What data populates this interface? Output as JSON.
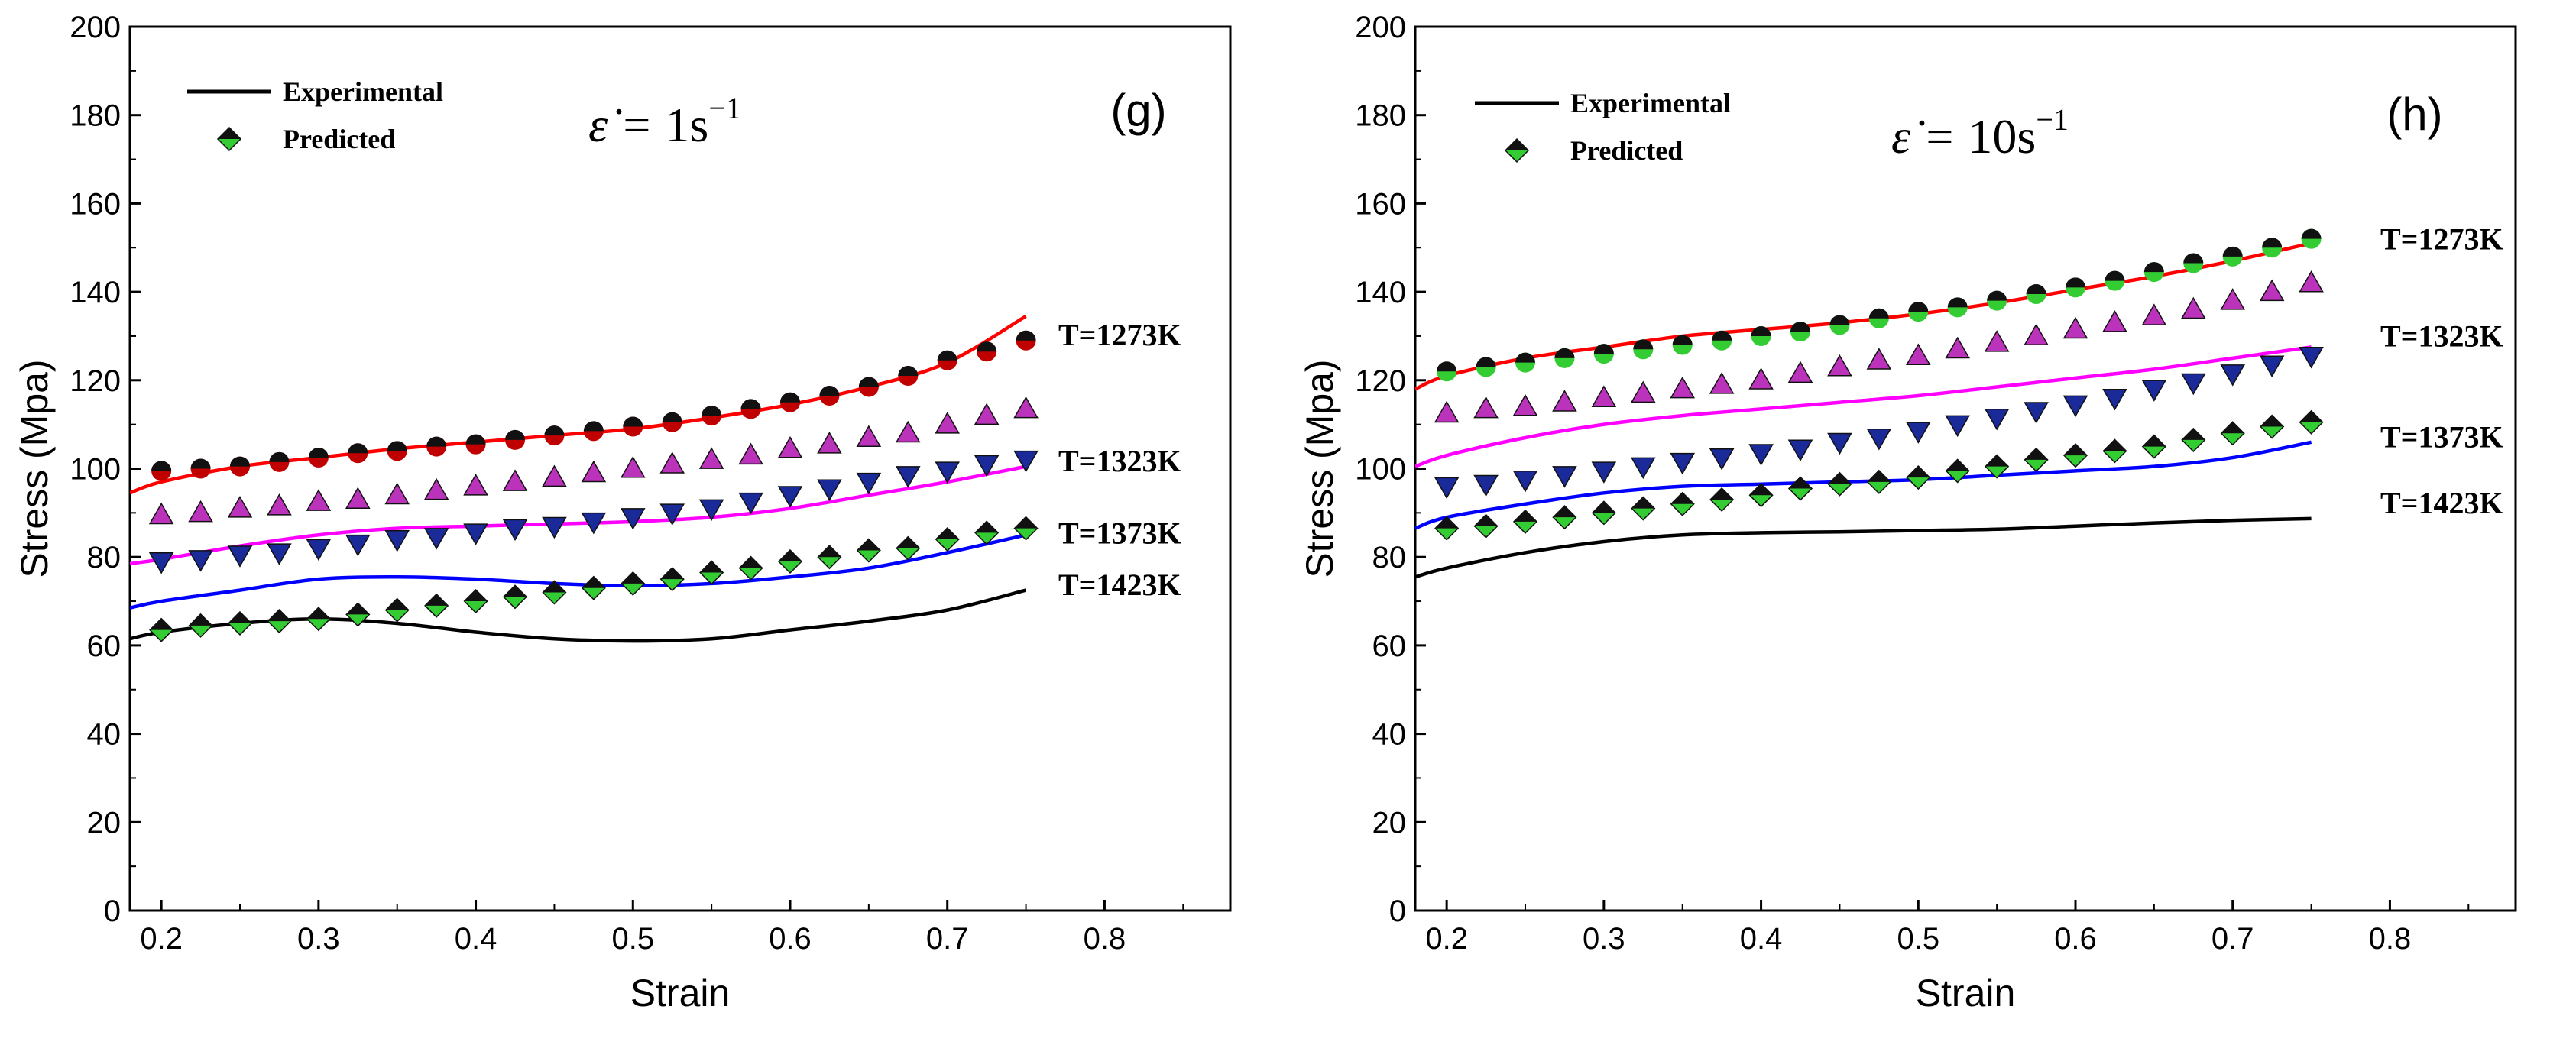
{
  "chart_data": [
    {
      "type": "line",
      "panel_label": "(g)",
      "rate_prefix": "ε̇ = ",
      "rate_value": "1s",
      "rate_exponent": "−1",
      "xlabel": "Strain",
      "ylabel": "Stress (Mpa)",
      "xlim": [
        0.18,
        0.88
      ],
      "ylim": [
        0,
        200
      ],
      "xticks": [
        "0.2",
        "0.3",
        "0.4",
        "0.5",
        "0.6",
        "0.7",
        "0.8"
      ],
      "yticks": [
        "0",
        "20",
        "40",
        "60",
        "80",
        "100",
        "120",
        "140",
        "160",
        "180",
        "200"
      ],
      "legend": {
        "placement": "top-left",
        "experimental": "Experimental",
        "predicted": "Predicted"
      },
      "series": [
        {
          "name": "T=1273K",
          "color": "#ff0000",
          "marker": "circle",
          "marker_color": "#c00000",
          "experimental_x": [
            0.18,
            0.2,
            0.25,
            0.3,
            0.35,
            0.4,
            0.45,
            0.5,
            0.55,
            0.6,
            0.65,
            0.7,
            0.75
          ],
          "experimental_y": [
            94.5,
            97,
            100.5,
            102.5,
            104.5,
            106,
            107.5,
            109,
            111.5,
            114.5,
            118.5,
            124,
            134.5
          ],
          "predicted_x": [
            0.2,
            0.225,
            0.25,
            0.275,
            0.3,
            0.325,
            0.35,
            0.375,
            0.4,
            0.425,
            0.45,
            0.475,
            0.5,
            0.525,
            0.55,
            0.575,
            0.6,
            0.625,
            0.65,
            0.675,
            0.7,
            0.725,
            0.75
          ],
          "predicted_y": [
            99.5,
            100,
            100.5,
            101.5,
            102.5,
            103.5,
            104,
            105,
            105.5,
            106.5,
            107.5,
            108.5,
            109.5,
            110.5,
            112,
            113.5,
            115,
            116.5,
            118.5,
            121,
            124.5,
            126.5,
            129
          ]
        },
        {
          "name": "T=1323K",
          "color": "#ff00ff",
          "marker": "triangle-up",
          "marker_color": "#bb33bb",
          "experimental_x": [
            0.18,
            0.2,
            0.25,
            0.3,
            0.35,
            0.4,
            0.45,
            0.5,
            0.55,
            0.6,
            0.65,
            0.7,
            0.75
          ],
          "experimental_y": [
            78.5,
            79.5,
            82.5,
            85,
            86.5,
            87,
            87.5,
            88,
            89,
            91,
            94,
            97,
            100.5
          ],
          "predicted_x": [
            0.2,
            0.225,
            0.25,
            0.275,
            0.3,
            0.325,
            0.35,
            0.375,
            0.4,
            0.425,
            0.45,
            0.475,
            0.5,
            0.525,
            0.55,
            0.575,
            0.6,
            0.625,
            0.65,
            0.675,
            0.7,
            0.725,
            0.75
          ],
          "predicted_y": [
            89.5,
            90,
            91,
            91.5,
            92.5,
            93,
            94,
            95,
            96,
            97,
            98,
            99,
            100,
            101,
            102,
            103,
            104.5,
            105.5,
            107,
            108,
            110,
            112,
            113.5
          ]
        },
        {
          "name": "T=1373K",
          "color": "#0000ff",
          "marker": "triangle-down",
          "marker_color": "#1a2a99",
          "experimental_x": [
            0.18,
            0.2,
            0.25,
            0.3,
            0.35,
            0.4,
            0.45,
            0.5,
            0.55,
            0.6,
            0.65,
            0.7,
            0.75
          ],
          "experimental_y": [
            68.5,
            70,
            72.5,
            75,
            75.5,
            75,
            74,
            73.5,
            74,
            75.5,
            77.5,
            81,
            85
          ],
          "predicted_x": [
            0.2,
            0.225,
            0.25,
            0.275,
            0.3,
            0.325,
            0.35,
            0.375,
            0.4,
            0.425,
            0.45,
            0.475,
            0.5,
            0.525,
            0.55,
            0.575,
            0.6,
            0.625,
            0.65,
            0.675,
            0.7,
            0.725,
            0.75
          ],
          "predicted_y": [
            79,
            79.5,
            80.5,
            81,
            82,
            83,
            84,
            84.5,
            85.5,
            86.5,
            87,
            88,
            89,
            90,
            91,
            92.5,
            94,
            95.5,
            97,
            98.5,
            99.5,
            101,
            102
          ]
        },
        {
          "name": "T=1423K",
          "color": "#000000",
          "marker": "diamond",
          "marker_color": "#33cc33",
          "experimental_x": [
            0.18,
            0.2,
            0.25,
            0.3,
            0.35,
            0.4,
            0.45,
            0.5,
            0.55,
            0.6,
            0.65,
            0.7,
            0.75
          ],
          "experimental_y": [
            61.5,
            63,
            65,
            66,
            65,
            63,
            61.5,
            61,
            61.5,
            63.5,
            65.5,
            68,
            72.5
          ],
          "predicted_x": [
            0.2,
            0.225,
            0.25,
            0.275,
            0.3,
            0.325,
            0.35,
            0.375,
            0.4,
            0.425,
            0.45,
            0.475,
            0.5,
            0.525,
            0.55,
            0.575,
            0.6,
            0.625,
            0.65,
            0.675,
            0.7,
            0.725,
            0.75
          ],
          "predicted_y": [
            63.5,
            64.5,
            65,
            65.5,
            66,
            67,
            68,
            69,
            70,
            71,
            72,
            73,
            74,
            75,
            76.5,
            77.5,
            79,
            80,
            81.5,
            82,
            84,
            85.5,
            86.5
          ]
        }
      ]
    },
    {
      "type": "line",
      "panel_label": "(h)",
      "rate_prefix": "ε̇ = ",
      "rate_value": "10s",
      "rate_exponent": "−1",
      "xlabel": "Strain",
      "ylabel": "Stress (Mpa)",
      "xlim": [
        0.18,
        0.88
      ],
      "ylim": [
        0,
        200
      ],
      "xticks": [
        "0.2",
        "0.3",
        "0.4",
        "0.5",
        "0.6",
        "0.7",
        "0.8"
      ],
      "yticks": [
        "0",
        "20",
        "40",
        "60",
        "80",
        "100",
        "120",
        "140",
        "160",
        "180",
        "200"
      ],
      "legend": {
        "placement": "top-left",
        "experimental": "Experimental",
        "predicted": "Predicted"
      },
      "series": [
        {
          "name": "T=1273K",
          "color": "#ff0000",
          "marker": "circle",
          "marker_color": "#33cc33",
          "experimental_x": [
            0.18,
            0.2,
            0.25,
            0.3,
            0.35,
            0.4,
            0.45,
            0.5,
            0.55,
            0.6,
            0.65,
            0.7,
            0.75
          ],
          "experimental_y": [
            118,
            121,
            125,
            127.5,
            130,
            131.5,
            133,
            135,
            137.5,
            140.5,
            143.5,
            147,
            151
          ],
          "predicted_x": [
            0.2,
            0.225,
            0.25,
            0.275,
            0.3,
            0.325,
            0.35,
            0.375,
            0.4,
            0.425,
            0.45,
            0.475,
            0.5,
            0.525,
            0.55,
            0.575,
            0.6,
            0.625,
            0.65,
            0.675,
            0.7,
            0.725,
            0.75
          ],
          "predicted_y": [
            122,
            123,
            124,
            125,
            126,
            127,
            128,
            129,
            130,
            131,
            132.5,
            134,
            135.5,
            136.5,
            138,
            139.5,
            141,
            142.5,
            144.5,
            146.5,
            148,
            150,
            152
          ]
        },
        {
          "name": "T=1323K",
          "color": "#ff00ff",
          "marker": "triangle-up",
          "marker_color": "#bb33bb",
          "experimental_x": [
            0.18,
            0.2,
            0.25,
            0.3,
            0.35,
            0.4,
            0.45,
            0.5,
            0.55,
            0.6,
            0.65,
            0.7,
            0.75
          ],
          "experimental_y": [
            100.5,
            103,
            107,
            110,
            112,
            113.5,
            115,
            116.5,
            118.5,
            120.5,
            122.5,
            125,
            127.5
          ],
          "predicted_x": [
            0.2,
            0.225,
            0.25,
            0.275,
            0.3,
            0.325,
            0.35,
            0.375,
            0.4,
            0.425,
            0.45,
            0.475,
            0.5,
            0.525,
            0.55,
            0.575,
            0.6,
            0.625,
            0.65,
            0.675,
            0.7,
            0.725,
            0.75
          ],
          "predicted_y": [
            112.5,
            113.5,
            114,
            115,
            116,
            117,
            118,
            119,
            120,
            121.5,
            123,
            124.5,
            125.5,
            127,
            128.5,
            130,
            131.5,
            133,
            134.5,
            136,
            138,
            140,
            142
          ]
        },
        {
          "name": "T=1373K",
          "color": "#0000ff",
          "marker": "triangle-down",
          "marker_color": "#1a2a99",
          "experimental_x": [
            0.18,
            0.2,
            0.25,
            0.3,
            0.35,
            0.4,
            0.45,
            0.5,
            0.55,
            0.6,
            0.65,
            0.7,
            0.75
          ],
          "experimental_y": [
            86.5,
            89,
            92,
            94.5,
            96,
            96.5,
            97,
            97.5,
            98.5,
            99.5,
            100.5,
            102.5,
            106
          ],
          "predicted_x": [
            0.2,
            0.225,
            0.25,
            0.275,
            0.3,
            0.325,
            0.35,
            0.375,
            0.4,
            0.425,
            0.45,
            0.475,
            0.5,
            0.525,
            0.55,
            0.575,
            0.6,
            0.625,
            0.65,
            0.675,
            0.7,
            0.725,
            0.75
          ],
          "predicted_y": [
            96,
            96.5,
            97.5,
            98.5,
            99.5,
            100.5,
            101.5,
            102.5,
            103.5,
            104.5,
            106,
            107,
            108.5,
            110,
            111.5,
            113,
            114.5,
            116,
            118,
            119.5,
            121.5,
            123.5,
            125.5
          ]
        },
        {
          "name": "T=1423K",
          "color": "#000000",
          "marker": "diamond",
          "marker_color": "#33cc33",
          "experimental_x": [
            0.18,
            0.2,
            0.25,
            0.3,
            0.35,
            0.4,
            0.45,
            0.5,
            0.55,
            0.6,
            0.65,
            0.7,
            0.75
          ],
          "experimental_y": [
            75.5,
            77.5,
            81,
            83.5,
            85,
            85.5,
            85.7,
            86,
            86.3,
            87,
            87.7,
            88.3,
            88.7
          ],
          "predicted_x": [
            0.2,
            0.225,
            0.25,
            0.275,
            0.3,
            0.325,
            0.35,
            0.375,
            0.4,
            0.425,
            0.45,
            0.475,
            0.5,
            0.525,
            0.55,
            0.575,
            0.6,
            0.625,
            0.65,
            0.675,
            0.7,
            0.725,
            0.75
          ],
          "predicted_y": [
            86.5,
            87,
            88,
            89,
            90,
            91,
            92,
            93,
            94,
            95.5,
            96.5,
            97,
            98,
            99.5,
            100.5,
            102,
            103,
            104,
            105,
            106.5,
            108,
            109.5,
            110.5
          ]
        }
      ]
    }
  ]
}
